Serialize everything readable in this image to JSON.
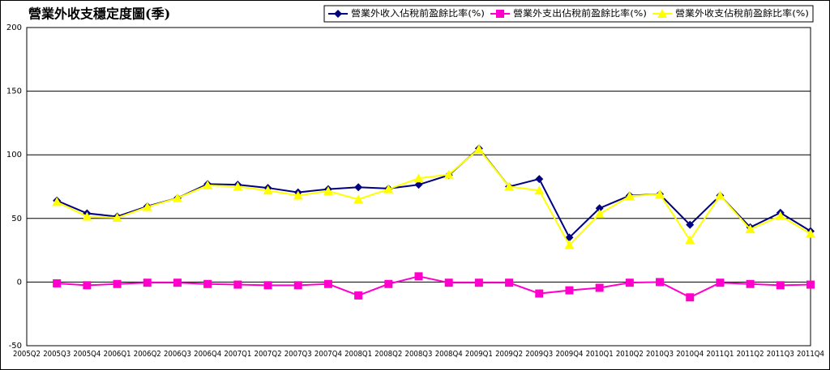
{
  "chart_data": {
    "type": "line",
    "title": "營業外收支穩定度圖(季)",
    "categories": [
      "2005Q2",
      "2005Q3",
      "2005Q4",
      "2006Q1",
      "2006Q2",
      "2006Q3",
      "2006Q4",
      "2007Q1",
      "2007Q2",
      "2007Q3",
      "2007Q4",
      "2008Q1",
      "2008Q2",
      "2008Q3",
      "2008Q4",
      "2009Q1",
      "2009Q2",
      "2009Q3",
      "2009Q4",
      "2010Q1",
      "2010Q2",
      "2010Q3",
      "2010Q4",
      "2011Q1",
      "2011Q2",
      "2011Q3",
      "2011Q4"
    ],
    "series": [
      {
        "name": "營業外收入佔稅前盈餘比率(%)",
        "color": "#000080",
        "marker": "diamond",
        "values": [
          null,
          64,
          54,
          51.5,
          59.5,
          66,
          77,
          76.5,
          74,
          70.5,
          73,
          74.5,
          73.5,
          76.5,
          84,
          105,
          75,
          81,
          35,
          58,
          68,
          69,
          45,
          68,
          43,
          54.5,
          40
        ]
      },
      {
        "name": "營業外支出佔稅前盈餘比率(%)",
        "color": "#ff00cc",
        "marker": "square",
        "values": [
          null,
          -1,
          -2.5,
          -1.5,
          -0.5,
          -0.5,
          -1.5,
          -2,
          -2.5,
          -2.5,
          -1.5,
          -10.5,
          -1.5,
          4.5,
          -0.5,
          -0.5,
          -0.5,
          -9,
          -6.5,
          -4.5,
          -0.5,
          0,
          -12,
          -0.5,
          -1.5,
          -2.5,
          -2
        ]
      },
      {
        "name": "營業外收支佔稅前盈餘比率(%)",
        "color": "#ffff00",
        "marker": "triangle",
        "values": [
          null,
          63,
          51.5,
          50.5,
          59,
          66,
          76,
          75,
          72,
          68,
          71.5,
          65,
          73,
          81.5,
          84.5,
          104.5,
          75,
          72,
          29,
          53.5,
          67.5,
          69,
          33,
          68,
          41.5,
          52,
          38
        ]
      }
    ],
    "ylim": [
      -50,
      200
    ],
    "yticks": [
      -50,
      0,
      50,
      100,
      150,
      200
    ],
    "grid": true
  }
}
